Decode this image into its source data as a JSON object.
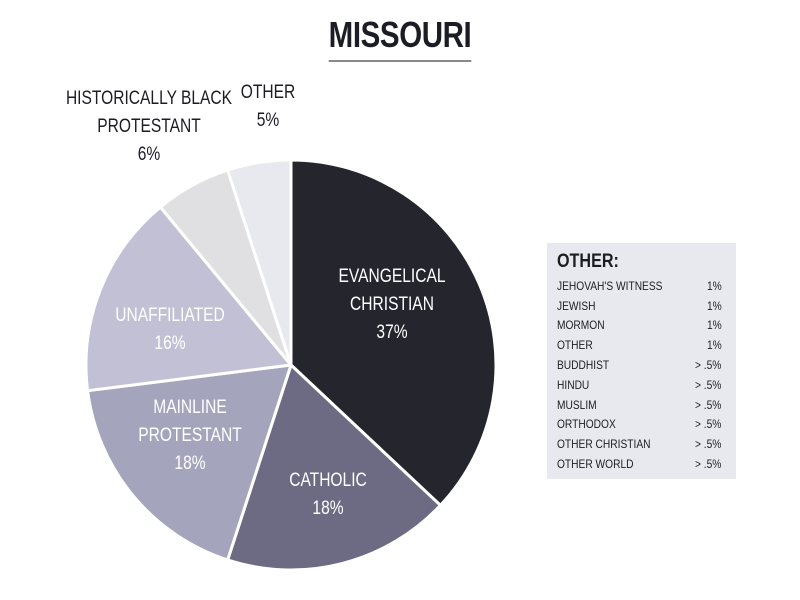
{
  "title": "MISSOURI",
  "chart_data": {
    "type": "pie",
    "title": "MISSOURI",
    "slices": [
      {
        "label_lines": [
          "EVANGELICAL",
          "CHRISTIAN"
        ],
        "value": 37,
        "value_label": "37%",
        "color": "#25252e",
        "text_color": "#ffffff"
      },
      {
        "label_lines": [
          "CATHOLIC"
        ],
        "value": 18,
        "value_label": "18%",
        "color": "#6c6b83",
        "text_color": "#ffffff"
      },
      {
        "label_lines": [
          "MAINLINE",
          "PROTESTANT"
        ],
        "value": 18,
        "value_label": "18%",
        "color": "#a5a4bd",
        "text_color": "#ffffff"
      },
      {
        "label_lines": [
          "UNAFFILIATED"
        ],
        "value": 16,
        "value_label": "16%",
        "color": "#c1c0d4",
        "text_color": "#ffffff"
      },
      {
        "label_lines": [
          "HISTORICALLY BLACK",
          "PROTESTANT"
        ],
        "value": 6,
        "value_label": "6%",
        "color": "#e0e0e3",
        "text_color": "#1c1c24"
      },
      {
        "label_lines": [
          "OTHER"
        ],
        "value": 5,
        "value_label": "5%",
        "color": "#e8e8ef",
        "text_color": "#1c1c24"
      }
    ]
  },
  "other_box": {
    "title": "OTHER:",
    "rows": [
      {
        "name": "JEHOVAH'S WITNESS",
        "value": "1%"
      },
      {
        "name": "JEWISH",
        "value": "1%"
      },
      {
        "name": "MORMON",
        "value": "1%"
      },
      {
        "name": "OTHER",
        "value": "1%"
      },
      {
        "name": "BUDDHIST",
        "value": "> .5%"
      },
      {
        "name": "HINDU",
        "value": "> .5%"
      },
      {
        "name": "MUSLIM",
        "value": "> .5%"
      },
      {
        "name": "ORTHODOX",
        "value": "> .5%"
      },
      {
        "name": "OTHER CHRISTIAN",
        "value": "> .5%"
      },
      {
        "name": "OTHER WORLD",
        "value": "> .5%"
      }
    ]
  }
}
